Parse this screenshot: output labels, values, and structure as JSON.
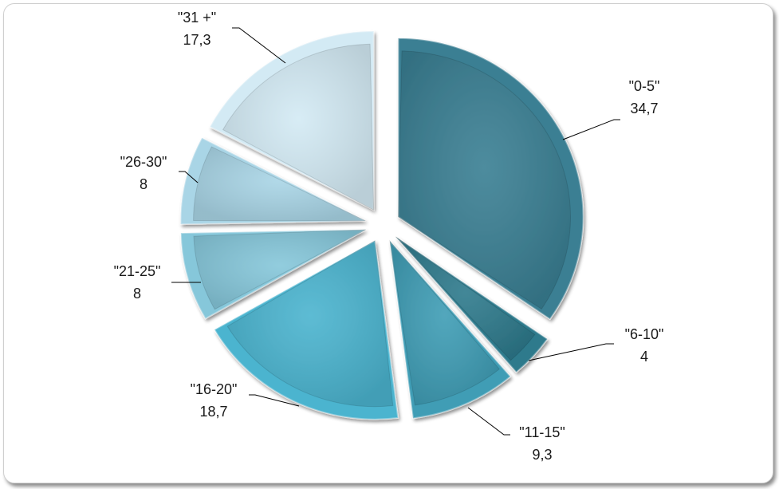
{
  "chart_data": {
    "type": "pie",
    "title": "",
    "legend": "none",
    "slices": [
      {
        "label": "\"0-5\"",
        "value_text": "34,7",
        "value": 34.7,
        "color": "#3A7F93"
      },
      {
        "label": "\"6-10\"",
        "value_text": "4",
        "value": 4,
        "color": "#2E7A8C"
      },
      {
        "label": "\"11-15\"",
        "value_text": "9,3",
        "value": 9.3,
        "color": "#3F9DB5"
      },
      {
        "label": "\"16-20\"",
        "value_text": "18,7",
        "value": 18.7,
        "color": "#4BB4CF"
      },
      {
        "label": "\"21-25\"",
        "value_text": "8",
        "value": 8,
        "color": "#86C7DA"
      },
      {
        "label": "\"26-30\"",
        "value_text": "8",
        "value": 8,
        "color": "#A9D5E6"
      },
      {
        "label": "\"31 +\"",
        "value_text": "17,3",
        "value": 17.3,
        "color": "#D3EAF4"
      }
    ]
  }
}
